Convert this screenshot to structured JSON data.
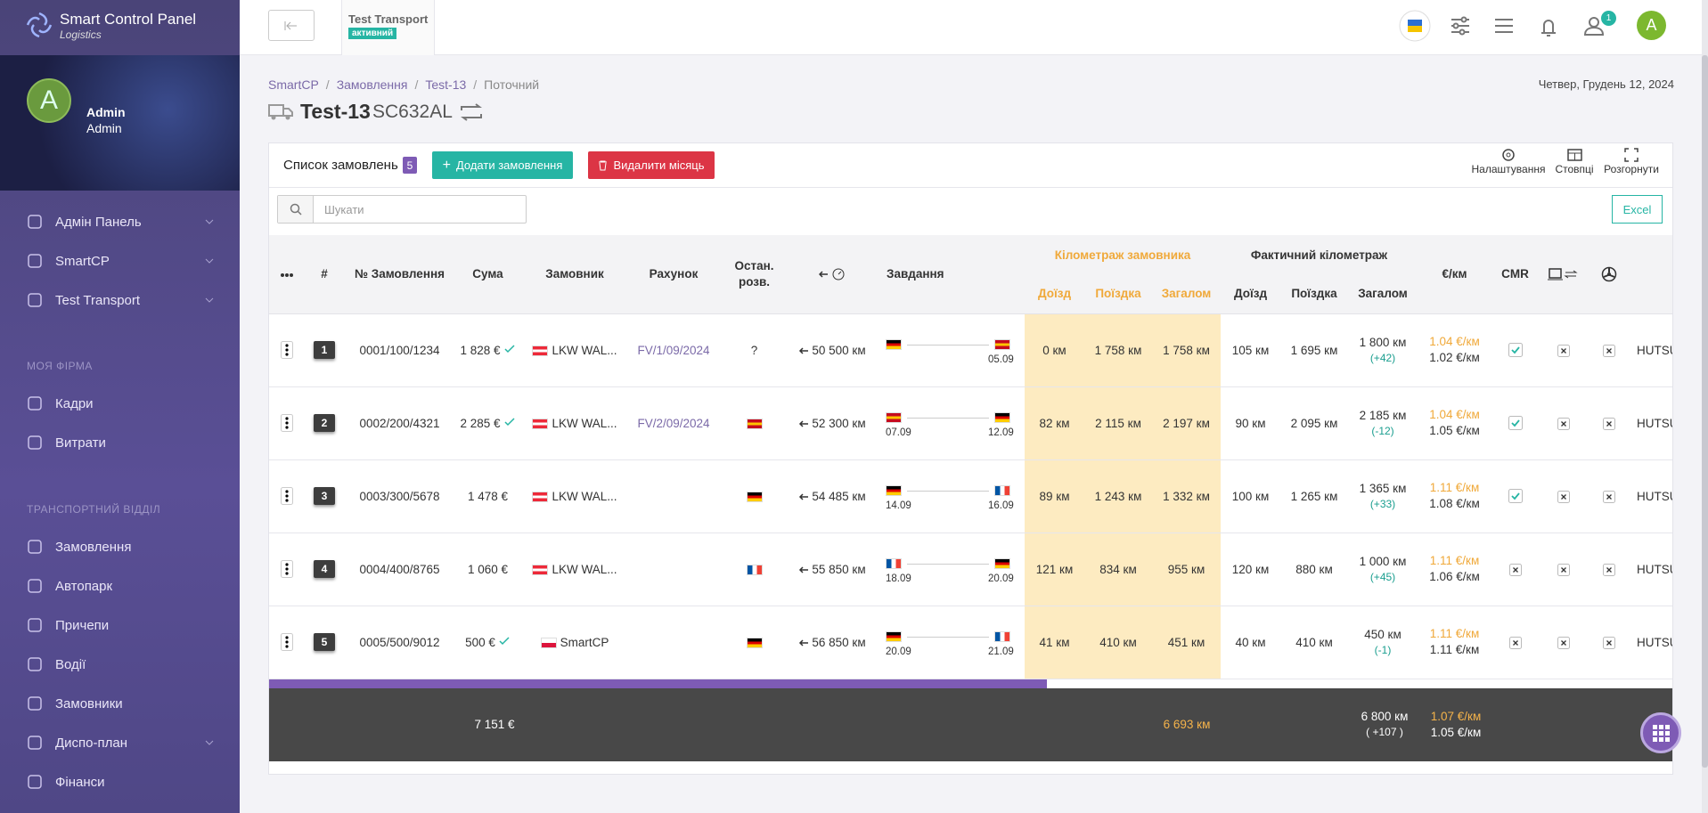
{
  "sidebar": {
    "brand": "Smart Control Panel",
    "brand_sub": "Logistics",
    "avatar": "A",
    "user_name": "Admin",
    "user_role": "Admin",
    "menu_top": [
      {
        "label": "Адмін Панель",
        "sub": true
      },
      {
        "label": "SmartCP",
        "sub": true
      },
      {
        "label": "Test Transport",
        "sub": true
      }
    ],
    "section_1": "МОЯ ФІРМА",
    "menu_1": [
      {
        "label": "Кадри"
      },
      {
        "label": "Витрати"
      }
    ],
    "section_2": "ТРАНСПОРТНИЙ ВІДДІЛ",
    "menu_2": [
      {
        "label": "Замовлення"
      },
      {
        "label": "Автопарк"
      },
      {
        "label": "Причепи"
      },
      {
        "label": "Водії"
      },
      {
        "label": "Замовники"
      },
      {
        "label": "Диспо-план",
        "sub": true
      },
      {
        "label": "Фінанси"
      }
    ]
  },
  "topbar": {
    "company": "Test Transport",
    "status": "активний",
    "notifications": 1,
    "avatar": "A"
  },
  "breadcrumb": [
    "SmartCP",
    "Замовлення",
    "Test-13",
    "Поточний"
  ],
  "date": "Четвер, Грудень 12, 2024",
  "title": "Test-13",
  "plate": "SC632AL",
  "card": {
    "heading": "Список замовлень",
    "count": 5,
    "add_button": "Додати замовлення",
    "delete_button": "Видалити місяць",
    "tools": [
      "Налаштування",
      "Стовпці",
      "Розгорнути"
    ],
    "search_placeholder": "Шукати",
    "excel": "Excel"
  },
  "table": {
    "headers": {
      "num": "#",
      "order": "№ Замовлення",
      "sum": "Сума",
      "customer": "Замовник",
      "invoice": "Рахунок",
      "last": "Остан. розв.",
      "task": "Завдання",
      "ord_group": "Кілометраж замовника",
      "fact_group": "Фактичний кілометраж",
      "approach": "Доїзд",
      "trip": "Поїздка",
      "total": "Загалом",
      "rate": "€/км",
      "cmr": "CMR"
    },
    "rows": [
      {
        "num": 1,
        "order": "0001/100/1234",
        "sum": "1 828 €",
        "paid": true,
        "customer": "LKW WAL...",
        "customer_flag": "at",
        "invoice": "FV/1/09/2024",
        "last": "?",
        "km": "50 500 км",
        "from": "de",
        "to": "es",
        "to_date": "05.09",
        "ord": [
          "0 км",
          "1 758 км",
          "1 758 км"
        ],
        "fact": [
          "105 км",
          "1 695 км",
          "1 800 км"
        ],
        "diff": "(+42)",
        "rate_ord": "1.04 €/км",
        "rate_fact": "1.02 €/км",
        "cmr": true,
        "driver": "HUTSU"
      },
      {
        "num": 2,
        "order": "0002/200/4321",
        "sum": "2 285 €",
        "paid": true,
        "customer": "LKW WAL...",
        "customer_flag": "at",
        "invoice": "FV/2/09/2024",
        "last_flag": "es",
        "km": "52 300 км",
        "from": "es",
        "to": "de",
        "from_date": "07.09",
        "to_date": "12.09",
        "ord": [
          "82 км",
          "2 115 км",
          "2 197 км"
        ],
        "fact": [
          "90 км",
          "2 095 км",
          "2 185 км"
        ],
        "diff": "(-12)",
        "rate_ord": "1.04 €/км",
        "rate_fact": "1.05 €/км",
        "cmr": true,
        "driver": "HUTSU"
      },
      {
        "num": 3,
        "order": "0003/300/5678",
        "sum": "1 478 €",
        "paid": false,
        "customer": "LKW WAL...",
        "customer_flag": "at",
        "last_flag": "de",
        "km": "54 485 км",
        "from": "de",
        "to": "fr",
        "from_date": "14.09",
        "to_date": "16.09",
        "ord": [
          "89 км",
          "1 243 км",
          "1 332 км"
        ],
        "fact": [
          "100 км",
          "1 265 км",
          "1 365 км"
        ],
        "diff": "(+33)",
        "rate_ord": "1.11 €/км",
        "rate_fact": "1.08 €/км",
        "cmr": true,
        "driver": "HUTSU"
      },
      {
        "num": 4,
        "order": "0004/400/8765",
        "sum": "1 060 €",
        "paid": false,
        "customer": "LKW WAL...",
        "customer_flag": "at",
        "last_flag": "fr",
        "km": "55 850 км",
        "from": "fr",
        "to": "de",
        "from_date": "18.09",
        "to_date": "20.09",
        "ord": [
          "121 км",
          "834 км",
          "955 км"
        ],
        "fact": [
          "120 км",
          "880 км",
          "1 000 км"
        ],
        "diff": "(+45)",
        "rate_ord": "1.11 €/км",
        "rate_fact": "1.06 €/км",
        "cmr": false,
        "driver": "HUTSU"
      },
      {
        "num": 5,
        "order": "0005/500/9012",
        "sum": "500 €",
        "paid": true,
        "customer": "SmartCP",
        "customer_flag": "pl",
        "last_flag": "de",
        "km": "56 850 км",
        "from": "de",
        "to": "fr",
        "from_date": "20.09",
        "to_date": "21.09",
        "ord": [
          "41 км",
          "410 км",
          "451 км"
        ],
        "fact": [
          "40 км",
          "410 км",
          "450 км"
        ],
        "diff": "(-1)",
        "rate_ord": "1.11 €/км",
        "rate_fact": "1.11 €/км",
        "cmr": false,
        "driver": "HUTSU"
      }
    ],
    "footer": {
      "sum": "7 151 €",
      "ord_total": "6 693 км",
      "fact_total": "6 800 км",
      "fact_diff": "( +107 )",
      "rate_ord": "1.07 €/км",
      "rate_fact": "1.05 €/км"
    }
  }
}
